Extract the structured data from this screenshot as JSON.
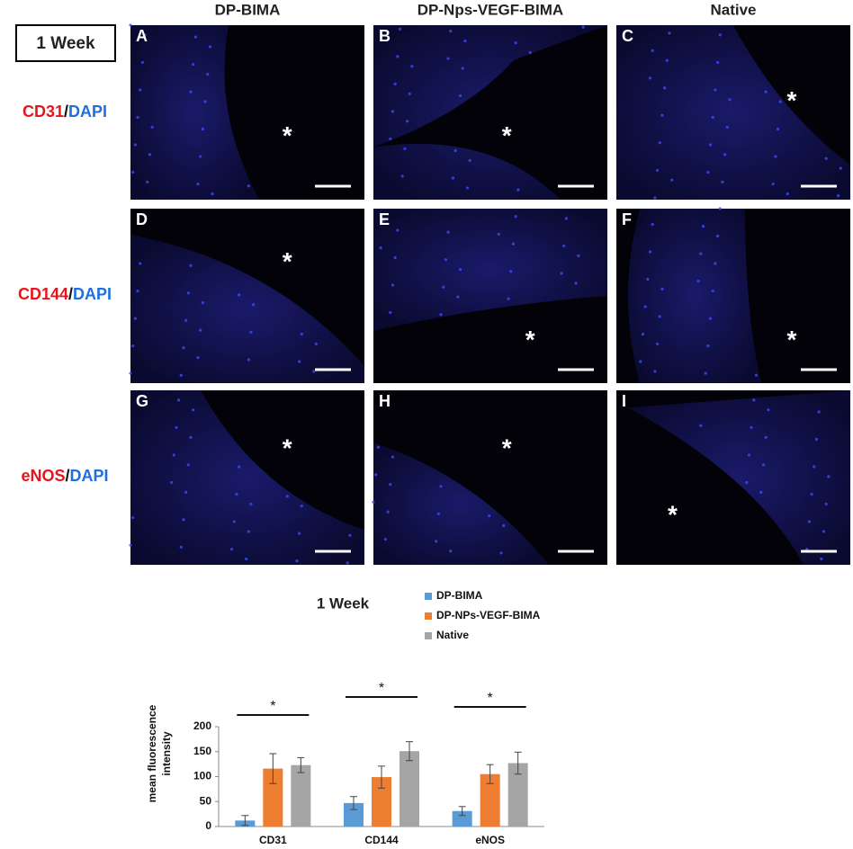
{
  "figure": {
    "week_label": "1 Week",
    "columns": [
      "DP-BIMA",
      "DP-Nps-VEGF-BIMA",
      "Native"
    ],
    "rows": [
      {
        "marker": "CD31",
        "stain": "DAPI"
      },
      {
        "marker": "CD144",
        "stain": "DAPI"
      },
      {
        "marker": "eNOS",
        "stain": "DAPI"
      }
    ],
    "separator": "/",
    "panels": [
      "A",
      "B",
      "C",
      "D",
      "E",
      "F",
      "G",
      "H",
      "I"
    ],
    "asterisk": "*"
  },
  "chart_data": {
    "type": "bar",
    "title": "1 Week",
    "y_label": [
      "mean fluorescence",
      "intensity"
    ],
    "categories": [
      "CD31",
      "CD144",
      "eNOS"
    ],
    "series": [
      {
        "name": "DP-BIMA",
        "color": "#5b9bd5",
        "values": [
          12,
          47,
          31
        ],
        "errors": [
          10,
          13,
          9
        ]
      },
      {
        "name": "DP-NPs-VEGF-BIMA",
        "color": "#ed7d31",
        "values": [
          116,
          99,
          105
        ],
        "errors": [
          30,
          22,
          19
        ]
      },
      {
        "name": "Native",
        "color": "#a5a5a5",
        "values": [
          123,
          151,
          127
        ],
        "errors": [
          15,
          19,
          22
        ]
      }
    ],
    "significance": [
      "*",
      "*",
      "*"
    ],
    "ylim": [
      0,
      200
    ],
    "yticks": [
      0,
      50,
      100,
      150,
      200
    ],
    "grid": false,
    "legend": "top-right"
  }
}
